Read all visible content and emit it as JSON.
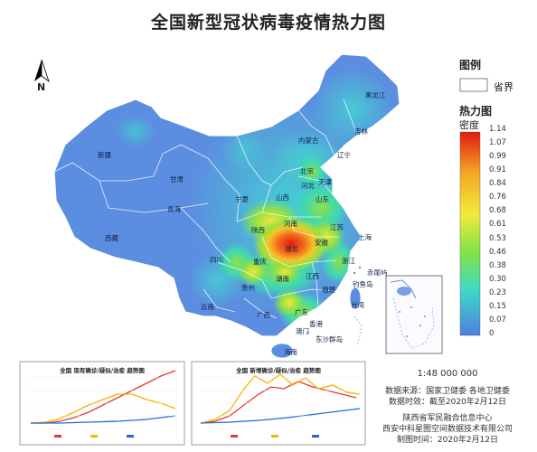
{
  "title": "全国新型冠状病毒疫情热力图",
  "north_label": "N",
  "legend": {
    "header": "图例",
    "boundary_label": "省界",
    "heat_header": "热力图",
    "density_label": "密度",
    "ticks": [
      "1.14",
      "1.07",
      "0.99",
      "0.91",
      "0.84",
      "0.76",
      "0.68",
      "0.61",
      "0.53",
      "0.46",
      "0.38",
      "0.30",
      "0.23",
      "0.15",
      "0.07",
      "0"
    ]
  },
  "scale": "1:48 000 000",
  "source": {
    "line1": "数据来源：国家卫健委 各地卫健委",
    "line2": "数据时效：截至2020年2月12日"
  },
  "producer": {
    "line1": "陕西省军民融合信息中心",
    "line2": "西安中科星图空间数据技术有限公司",
    "line3": "制图时间：2020年2月12日"
  },
  "provinces": [
    {
      "name": "黑龙江"
    },
    {
      "name": "吉林"
    },
    {
      "name": "辽宁"
    },
    {
      "name": "内蒙古"
    },
    {
      "name": "北京"
    },
    {
      "name": "天津"
    },
    {
      "name": "河北"
    },
    {
      "name": "山西"
    },
    {
      "name": "山东"
    },
    {
      "name": "宁夏"
    },
    {
      "name": "甘肃"
    },
    {
      "name": "新疆"
    },
    {
      "name": "青海"
    },
    {
      "name": "西藏"
    },
    {
      "name": "陕西"
    },
    {
      "name": "河南"
    },
    {
      "name": "江苏"
    },
    {
      "name": "安徽"
    },
    {
      "name": "上海"
    },
    {
      "name": "湖北"
    },
    {
      "name": "浙江"
    },
    {
      "name": "四川"
    },
    {
      "name": "重庆"
    },
    {
      "name": "湖南"
    },
    {
      "name": "江西"
    },
    {
      "name": "贵州"
    },
    {
      "name": "云南"
    },
    {
      "name": "福建"
    },
    {
      "name": "台湾"
    },
    {
      "name": "广西"
    },
    {
      "name": "广东"
    },
    {
      "name": "香港"
    },
    {
      "name": "澳门"
    },
    {
      "name": "海南"
    },
    {
      "name": "赤尾屿"
    },
    {
      "name": "钓鱼岛"
    },
    {
      "name": "东沙群岛"
    }
  ],
  "charts": {
    "left_title": "全国 现有确诊/疑似/治愈 趋势图",
    "right_title": "全国 新增确诊/疑似/治愈 趋势图"
  },
  "colors": {
    "low": "#5d8fe2",
    "mid_low": "#3fe0d0",
    "mid": "#79e34a",
    "mid_high": "#f0f03a",
    "high": "#f5a623",
    "peak": "#e8251b"
  }
}
